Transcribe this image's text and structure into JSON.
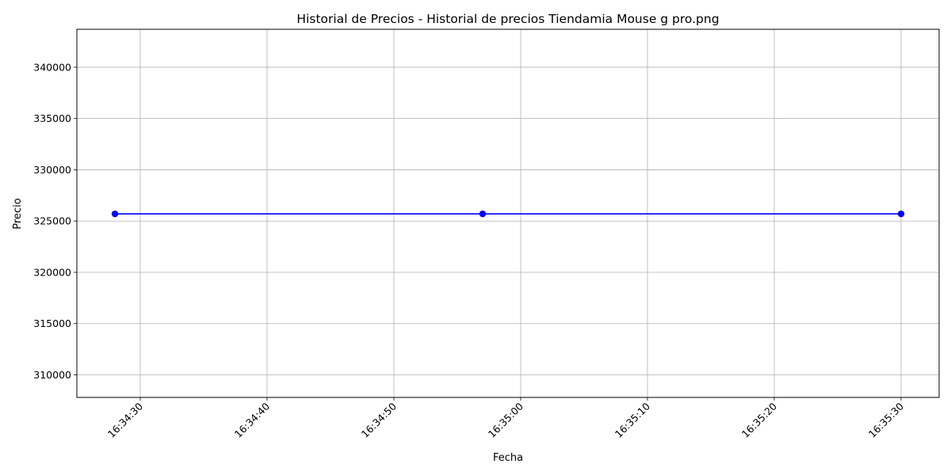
{
  "chart_data": {
    "type": "line",
    "title": "Historial de Precios - Historial de precios Tiendamia Mouse g pro.png",
    "xlabel": "Fecha",
    "ylabel": "Precio",
    "x_type": "time",
    "xlim": [
      "16:34:25",
      "16:35:33"
    ],
    "ylim": [
      307800,
      343700
    ],
    "x_ticks": [
      "16:34:30",
      "16:34:40",
      "16:34:50",
      "16:35:00",
      "16:35:10",
      "16:35:20",
      "16:35:30"
    ],
    "y_ticks": [
      310000,
      315000,
      320000,
      325000,
      330000,
      335000,
      340000
    ],
    "grid": true,
    "series": [
      {
        "color": "#0000ff",
        "marker": "circle",
        "x": [
          "16:34:28",
          "16:34:57",
          "16:35:30"
        ],
        "y": [
          325700,
          325700,
          325700
        ]
      }
    ]
  }
}
